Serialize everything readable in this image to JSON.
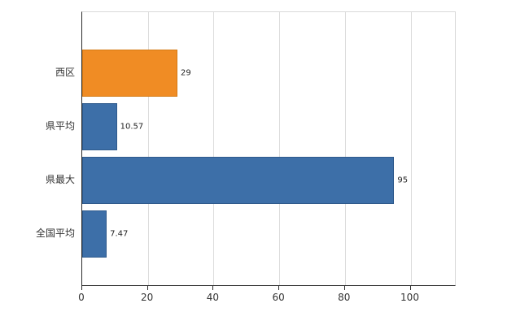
{
  "chart_data": {
    "type": "bar",
    "orientation": "horizontal",
    "title": "",
    "xlabel": "",
    "ylabel": "",
    "categories": [
      "西区",
      "県平均",
      "県最大",
      "全国平均"
    ],
    "values": [
      29,
      10.57,
      95,
      7.47
    ],
    "value_labels": [
      "29",
      "10.57",
      "95",
      "7.47"
    ],
    "bar_colors": [
      "#f08c24",
      "#3d6fa8",
      "#3d6fa8",
      "#3d6fa8"
    ],
    "bar_border_colors": [
      "#d57a14",
      "#2f5a8c",
      "#2f5a8c",
      "#2f5a8c"
    ],
    "xlim": [
      0,
      114
    ],
    "x_ticks": [
      0,
      20,
      40,
      60,
      80,
      100
    ],
    "x_tick_labels": [
      "0",
      "20",
      "40",
      "60",
      "80",
      "100"
    ],
    "grid": true,
    "legend": false
  },
  "layout_colors": {
    "axis_line": "#2b2b2b",
    "grid_line": "#dcdcdc",
    "plot_border": "#d9d9d9",
    "background": "#ffffff",
    "tick_label": "#333333",
    "value_label": "#1f1f1f"
  }
}
